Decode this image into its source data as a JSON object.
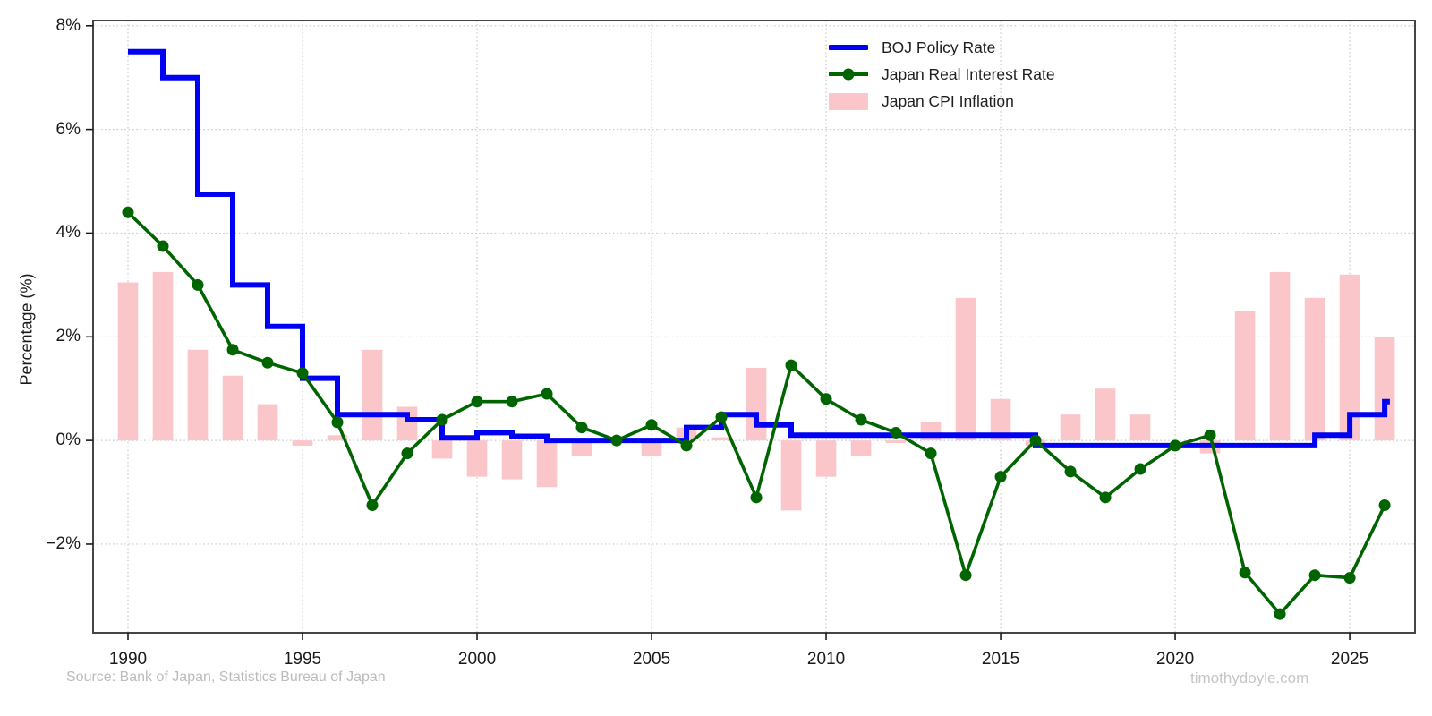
{
  "chart_data": {
    "type": "combo",
    "title": "",
    "xlabel": "",
    "ylabel": "Percentage (%)",
    "years": [
      1990,
      1991,
      1992,
      1993,
      1994,
      1995,
      1996,
      1997,
      1998,
      1999,
      2000,
      2001,
      2002,
      2003,
      2004,
      2005,
      2006,
      2007,
      2008,
      2009,
      2010,
      2011,
      2012,
      2013,
      2014,
      2015,
      2016,
      2017,
      2018,
      2019,
      2020,
      2021,
      2022,
      2023,
      2024,
      2025,
      2026
    ],
    "series": [
      {
        "name": "BOJ Policy Rate",
        "type": "step",
        "color": "#0000f2",
        "line_width": 6,
        "values": [
          7.5,
          7.0,
          4.75,
          3.0,
          2.2,
          1.2,
          0.5,
          0.5,
          0.4,
          0.05,
          0.15,
          0.08,
          0.0,
          0.0,
          0.0,
          0.0,
          0.25,
          0.5,
          0.3,
          0.1,
          0.1,
          0.1,
          0.1,
          0.1,
          0.1,
          0.1,
          -0.1,
          -0.1,
          -0.1,
          -0.1,
          -0.1,
          -0.1,
          -0.1,
          -0.1,
          0.1,
          0.5,
          0.75
        ]
      },
      {
        "name": "Japan Real Interest Rate",
        "type": "line",
        "color": "#006400",
        "marker": "circle",
        "line_width": 3.6,
        "values": [
          4.4,
          3.75,
          3.0,
          1.75,
          1.5,
          1.3,
          0.35,
          -1.25,
          -0.25,
          0.4,
          0.75,
          0.75,
          0.9,
          0.25,
          0.0,
          0.3,
          -0.1,
          0.45,
          -1.1,
          1.45,
          0.8,
          0.4,
          0.15,
          -0.25,
          -2.6,
          -0.7,
          0.0,
          -0.6,
          -1.1,
          -0.55,
          -0.1,
          0.1,
          -2.55,
          -3.35,
          -2.6,
          -2.65,
          -1.25
        ]
      },
      {
        "name": "Japan CPI Inflation",
        "type": "bar",
        "color": "#fac6c9",
        "values": [
          3.05,
          3.25,
          1.75,
          1.25,
          0.7,
          -0.1,
          0.1,
          1.75,
          0.65,
          -0.35,
          -0.7,
          -0.75,
          -0.9,
          -0.3,
          0.0,
          -0.3,
          0.25,
          0.06,
          1.4,
          -1.35,
          -0.7,
          -0.3,
          -0.05,
          0.35,
          2.75,
          0.8,
          -0.1,
          0.5,
          1.0,
          0.5,
          0.0,
          -0.25,
          2.5,
          3.25,
          2.75,
          3.2,
          2.0
        ]
      }
    ],
    "xlim": [
      1989.0,
      2026.87
    ],
    "ylim": [
      -3.71,
      8.1
    ],
    "x_ticks": [
      "1990",
      "1995",
      "2000",
      "2005",
      "2010",
      "2015",
      "2020",
      "2025"
    ],
    "x_tick_years": [
      1990,
      1995,
      2000,
      2005,
      2010,
      2015,
      2020,
      2025
    ],
    "y_ticks": [
      "8%",
      "6%",
      "4%",
      "2%",
      "0%",
      "−2%"
    ],
    "y_tick_values": [
      8,
      6,
      4,
      2,
      0,
      -2
    ],
    "grid": true,
    "legend_position": "upper center-right",
    "step_end_year": 2026.15,
    "bar_width_years": 0.58
  },
  "legend": {
    "items": [
      {
        "label": "BOJ Policy Rate",
        "swatch": "line",
        "color": "#0000f2"
      },
      {
        "label": "Japan Real Interest Rate",
        "swatch": "line-marker",
        "color": "#006400"
      },
      {
        "label": "Japan CPI Inflation",
        "swatch": "rect",
        "color": "#fac6c9"
      }
    ]
  },
  "footer": {
    "source": "Source: Bank of Japan, Statistics Bureau of Japan",
    "site": "timothydoyle.com"
  },
  "colors": {
    "background": "#ffffff",
    "grid": "#c9c9c9",
    "spine": "#454545",
    "tick": "#1a1a1a",
    "tick_label": "#1a1a1a",
    "source_text": "#bcbcbc",
    "site_text": "#c6c6c6"
  }
}
